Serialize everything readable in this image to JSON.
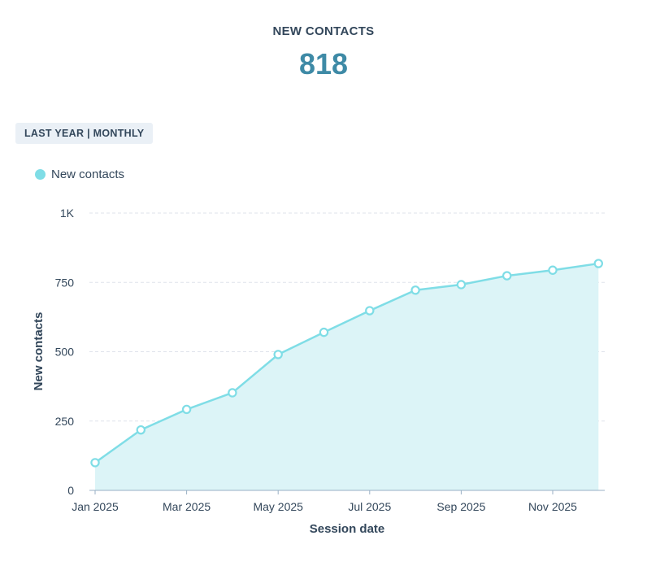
{
  "kpi": {
    "title": "NEW CONTACTS",
    "value": "818"
  },
  "filter": {
    "label": "LAST YEAR | MONTHLY"
  },
  "colors": {
    "series_line": "#7fdde6",
    "series_fill": "#dcf4f7",
    "kpi_value": "#3e8aa6",
    "text": "#33475b",
    "grid": "#dfe3eb"
  },
  "chart_data": {
    "type": "area",
    "xlabel": "Session date",
    "ylabel": "New contacts",
    "ylim": [
      0,
      1000
    ],
    "yticks": [
      0,
      250,
      500,
      750,
      1000
    ],
    "ytick_labels": [
      "0",
      "250",
      "500",
      "750",
      "1K"
    ],
    "x": [
      "Jan 2025",
      "Feb 2025",
      "Mar 2025",
      "Apr 2025",
      "May 2025",
      "Jun 2025",
      "Jul 2025",
      "Aug 2025",
      "Sep 2025",
      "Oct 2025",
      "Nov 2025",
      "Dec 2025"
    ],
    "xtick_labels": [
      "Jan 2025",
      "Mar 2025",
      "May 2025",
      "Jul 2025",
      "Sep 2025",
      "Nov 2025"
    ],
    "legend": "top-left",
    "grid": true,
    "series": [
      {
        "name": "New contacts",
        "values": [
          100,
          218,
          292,
          352,
          490,
          570,
          648,
          722,
          742,
          774,
          794,
          818
        ]
      }
    ]
  }
}
